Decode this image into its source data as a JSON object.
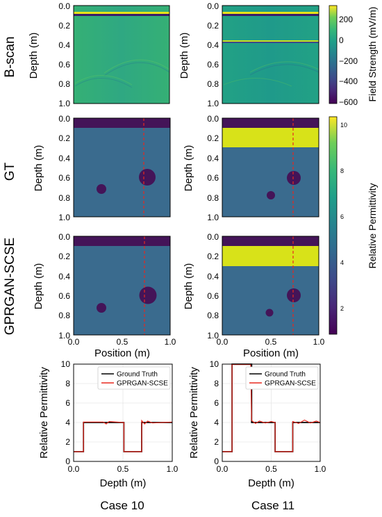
{
  "rows": {
    "row1_label": "B-scan",
    "row2_label": "GT",
    "row3_label": "GPRGAN-SCSE"
  },
  "columns": {
    "case_left": "Case 10",
    "case_right": "Case 11"
  },
  "colorbars": {
    "field": {
      "label": "Field Strength (mV/m)",
      "ticks": [
        "200",
        "0",
        "−200",
        "−400",
        "−600"
      ],
      "range": [
        -650,
        320
      ]
    },
    "permittivity": {
      "label": "Relative Permittivity",
      "ticks": [
        "10",
        "8",
        "6",
        "4",
        "2"
      ],
      "range": [
        1,
        10.5
      ]
    }
  },
  "image_axes": {
    "depth_label": "Depth (m)",
    "position_label": "Position (m)",
    "depth_ticks": [
      "0.0",
      "0.2",
      "0.4",
      "0.6",
      "0.8",
      "1.0"
    ],
    "position_ticks": [
      "0.0",
      "0.5",
      "1.0"
    ]
  },
  "colors": {
    "background_medium": "#3a6b8e",
    "top_layer": "#441458",
    "high_layer": "#d8e219",
    "bscan_background": "#22a884",
    "ground_truth_line": "#000000",
    "prediction_line": "#e8281e",
    "profile_marker": "#e8281e"
  },
  "chart_data": [
    {
      "type": "heatmap",
      "panel": "B-scan Case 10",
      "x_range": [
        0,
        1
      ],
      "y_range": [
        0,
        1
      ],
      "description_values": {
        "direct_wave_depth": 0.08,
        "reflection_apex_depths": [
          0.62,
          0.72
        ]
      }
    },
    {
      "type": "heatmap",
      "panel": "B-scan Case 11",
      "x_range": [
        0,
        1
      ],
      "y_range": [
        0,
        1
      ],
      "description_values": {
        "direct_wave_depth": 0.08,
        "interface_depth": 0.36,
        "reflection_apex_depths": [
          0.6,
          0.72
        ]
      }
    },
    {
      "type": "heatmap",
      "panel": "GT Case 10",
      "layers": [
        {
          "from": 0,
          "to": 0.1,
          "permittivity": 1
        },
        {
          "from": 0.1,
          "to": 1.0,
          "permittivity": 4
        }
      ],
      "objects": [
        {
          "x": 0.76,
          "y": 0.6,
          "r": 0.085
        },
        {
          "x": 0.27,
          "y": 0.73,
          "r": 0.045
        }
      ],
      "profile_x": 0.73
    },
    {
      "type": "heatmap",
      "panel": "GT Case 11",
      "layers": [
        {
          "from": 0,
          "to": 0.1,
          "permittivity": 1
        },
        {
          "from": 0.1,
          "to": 0.3,
          "permittivity": 10
        },
        {
          "from": 0.3,
          "to": 1.0,
          "permittivity": 4
        }
      ],
      "objects": [
        {
          "x": 0.74,
          "y": 0.61,
          "r": 0.065
        },
        {
          "x": 0.5,
          "y": 0.79,
          "r": 0.04
        }
      ],
      "profile_x": 0.73
    },
    {
      "type": "heatmap",
      "panel": "GPRGAN-SCSE Case 10",
      "layers": [
        {
          "from": 0,
          "to": 0.1,
          "permittivity": 1
        },
        {
          "from": 0.1,
          "to": 1.0,
          "permittivity": 4
        }
      ],
      "objects": [
        {
          "x": 0.76,
          "y": 0.6,
          "r": 0.085
        },
        {
          "x": 0.27,
          "y": 0.73,
          "r": 0.045
        }
      ],
      "profile_x": 0.73
    },
    {
      "type": "heatmap",
      "panel": "GPRGAN-SCSE Case 11",
      "layers": [
        {
          "from": 0,
          "to": 0.1,
          "permittivity": 1
        },
        {
          "from": 0.1,
          "to": 0.3,
          "permittivity": 10
        },
        {
          "from": 0.3,
          "to": 1.0,
          "permittivity": 4
        }
      ],
      "objects": [
        {
          "x": 0.74,
          "y": 0.61,
          "r": 0.065
        },
        {
          "x": 0.49,
          "y": 0.78,
          "r": 0.035
        }
      ],
      "profile_x": 0.73
    },
    {
      "type": "line",
      "panel": "Profile Case 10",
      "xlabel": "Depth (m)",
      "ylabel": "Relative Permittivity",
      "xlim": [
        0,
        1
      ],
      "ylim": [
        0,
        10
      ],
      "xticks": [
        "0.0",
        "0.5",
        "1.0"
      ],
      "yticks": [
        "0",
        "2",
        "4",
        "6",
        "8",
        "10"
      ],
      "grid": true,
      "legend": "top-right",
      "series": [
        {
          "name": "Ground Truth",
          "x": [
            0,
            0.1,
            0.1,
            0.51,
            0.51,
            0.69,
            0.69,
            1.0
          ],
          "y": [
            1,
            1,
            4,
            4,
            1,
            1,
            4,
            4
          ]
        },
        {
          "name": "GPRGAN-SCSE",
          "x": [
            0,
            0.1,
            0.1,
            0.3,
            0.33,
            0.36,
            0.51,
            0.51,
            0.69,
            0.69,
            0.72,
            0.75,
            0.8,
            1.0
          ],
          "y": [
            1,
            1,
            4.05,
            4.05,
            3.85,
            4.1,
            4.0,
            1,
            1,
            4.2,
            3.85,
            4.15,
            3.95,
            4.05
          ]
        }
      ]
    },
    {
      "type": "line",
      "panel": "Profile Case 11",
      "xlabel": "Depth (m)",
      "ylabel": "Relative Permittivity",
      "xlim": [
        0,
        1
      ],
      "ylim": [
        0,
        10
      ],
      "xticks": [
        "0.0",
        "0.5",
        "1.0"
      ],
      "yticks": [
        "0",
        "2",
        "4",
        "6",
        "8",
        "10"
      ],
      "grid": true,
      "legend": "top-right",
      "series": [
        {
          "name": "Ground Truth",
          "x": [
            0,
            0.1,
            0.1,
            0.3,
            0.3,
            0.54,
            0.54,
            0.72,
            0.72,
            1.0
          ],
          "y": [
            1,
            1,
            10,
            10,
            4,
            4,
            1,
            1,
            4,
            4
          ]
        },
        {
          "name": "GPRGAN-SCSE",
          "x": [
            0,
            0.1,
            0.1,
            0.29,
            0.3,
            0.34,
            0.38,
            0.44,
            0.5,
            0.54,
            0.54,
            0.72,
            0.72,
            0.78,
            0.84,
            0.9,
            0.96,
            1.0
          ],
          "y": [
            1,
            1,
            9.95,
            9.95,
            4.2,
            3.9,
            4.15,
            3.95,
            4.1,
            4.0,
            1,
            1,
            4.1,
            3.9,
            4.25,
            3.95,
            4.15,
            4.0
          ]
        }
      ]
    }
  ]
}
